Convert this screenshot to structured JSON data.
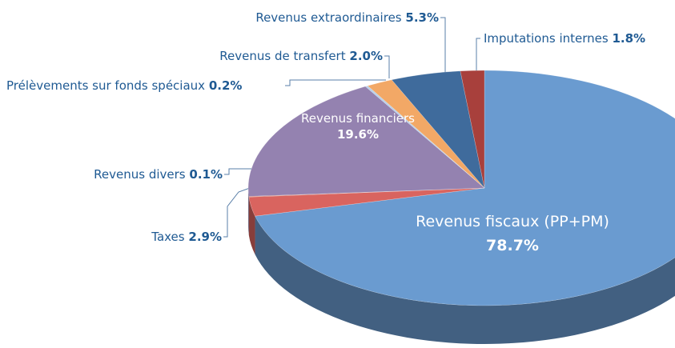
{
  "chart_data": {
    "type": "pie",
    "categories": [
      "Revenus fiscaux (PP+PM)",
      "Taxes",
      "Revenus divers",
      "Revenus financiers",
      "Prélèvements sur fonds spéciaux",
      "Revenus de transfert",
      "Revenus extraordinaires",
      "Imputations internes"
    ],
    "values": [
      78.7,
      2.9,
      0.1,
      19.6,
      0.2,
      2.0,
      5.3,
      1.8
    ],
    "value_labels": [
      "78.7%",
      "2.9%",
      "0.1%",
      "19.6%",
      "0.2%",
      "2.0%",
      "5.3%",
      "1.8%"
    ],
    "colors": [
      "#6a9bd0",
      "#d9645f",
      "#c9746b",
      "#9482b0",
      "#b8d0ea",
      "#f2a866",
      "#3f6b9c",
      "#a8403c"
    ]
  }
}
